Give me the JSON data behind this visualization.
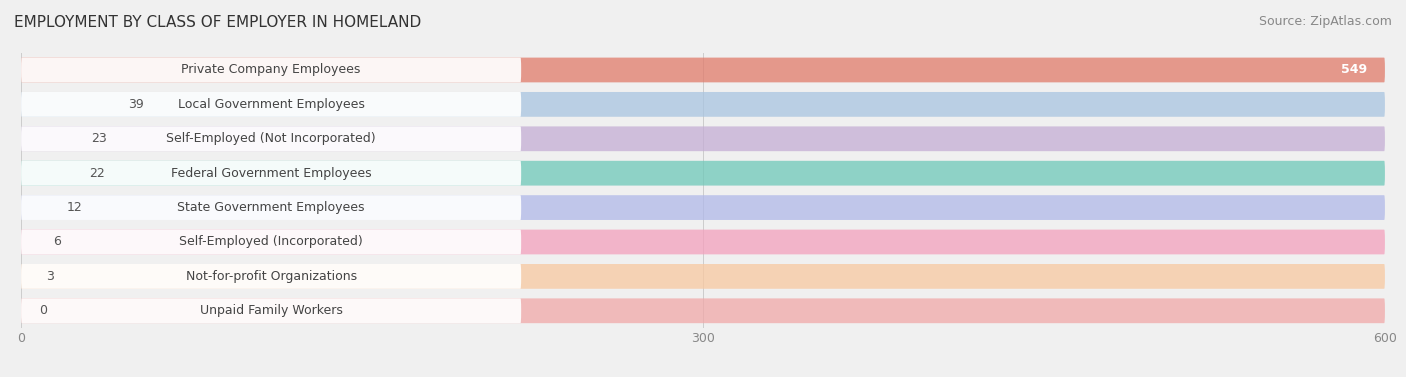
{
  "title": "EMPLOYMENT BY CLASS OF EMPLOYER IN HOMELAND",
  "source": "Source: ZipAtlas.com",
  "categories": [
    "Private Company Employees",
    "Local Government Employees",
    "Self-Employed (Not Incorporated)",
    "Federal Government Employees",
    "State Government Employees",
    "Self-Employed (Incorporated)",
    "Not-for-profit Organizations",
    "Unpaid Family Workers"
  ],
  "values": [
    549,
    39,
    23,
    22,
    12,
    6,
    3,
    0
  ],
  "bar_colors": [
    "#e07b6a",
    "#a8c4e0",
    "#c4aed4",
    "#6ec8b8",
    "#b0b8e8",
    "#f4a0bc",
    "#f8c8a0",
    "#f0a8a8"
  ],
  "xlim_max": 600,
  "xticks": [
    0,
    300,
    600
  ],
  "background_color": "#f0f0f0",
  "bar_bg_color": "#e8e8e8",
  "white_label_bg": "#ffffff",
  "title_fontsize": 11,
  "source_fontsize": 9,
  "label_fontsize": 9,
  "value_fontsize": 9
}
